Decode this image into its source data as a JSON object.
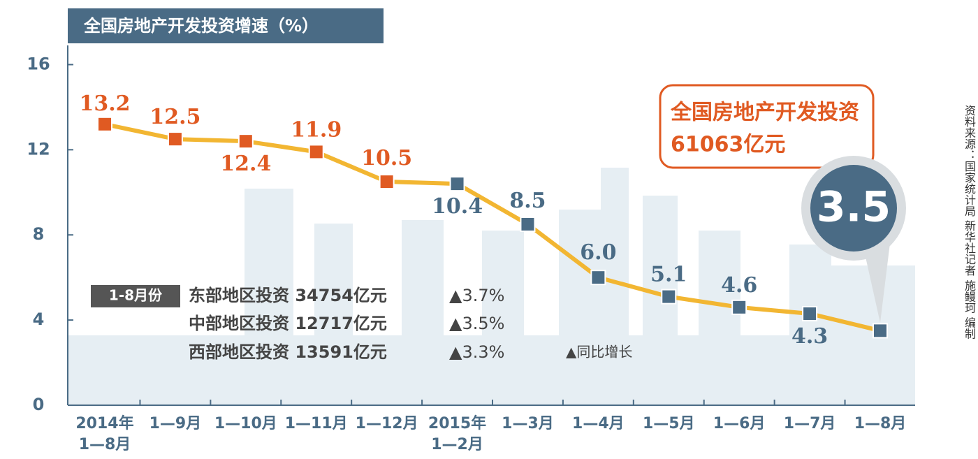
{
  "chart_data": {
    "type": "line",
    "title": "全国房地产开发投资增速（%）",
    "categories": [
      "2014年\n1—8月",
      "1—9月",
      "1—10月",
      "1—11月",
      "1—12月",
      "2015年\n1—2月",
      "1—3月",
      "1—4月",
      "1—5月",
      "1—6月",
      "1—7月",
      "1—8月"
    ],
    "series": [
      {
        "name": "全国房地产开发投资增速",
        "color": "#f2b632",
        "values": [
          13.2,
          12.5,
          12.4,
          11.9,
          10.5,
          10.4,
          8.5,
          6.0,
          5.1,
          4.6,
          4.3,
          3.5
        ],
        "value_labels": [
          "13.2",
          "12.5",
          "12.4",
          "11.9",
          "10.5",
          "10.4",
          "8.5",
          "6.0",
          "5.1",
          "4.6",
          "4.3",
          "3.5"
        ],
        "marker_colors": [
          "#e05a22",
          "#e05a22",
          "#e05a22",
          "#e05a22",
          "#e05a22",
          "#4a6b85",
          "#4a6b85",
          "#4a6b85",
          "#4a6b85",
          "#4a6b85",
          "#4a6b85",
          "#4a6b85"
        ]
      }
    ],
    "ylim": [
      0,
      17
    ],
    "yticks": [
      0,
      4,
      8,
      12,
      16
    ],
    "grid": false,
    "callout": {
      "line1": "全国房地产开发投资",
      "line2": "61063亿元"
    },
    "regions": {
      "period": "1-8月份",
      "rows": [
        {
          "name": "东部地区投资 34754亿元",
          "growth": "▲3.7%"
        },
        {
          "name": "中部地区投资 12717亿元",
          "growth": "▲3.5%"
        },
        {
          "name": "西部地区投资 13591亿元",
          "growth": "▲3.3%"
        }
      ],
      "note": "▲同比增长"
    },
    "source": "资料来源：国家统计局 新华社记者 施鳗珂 编制"
  }
}
